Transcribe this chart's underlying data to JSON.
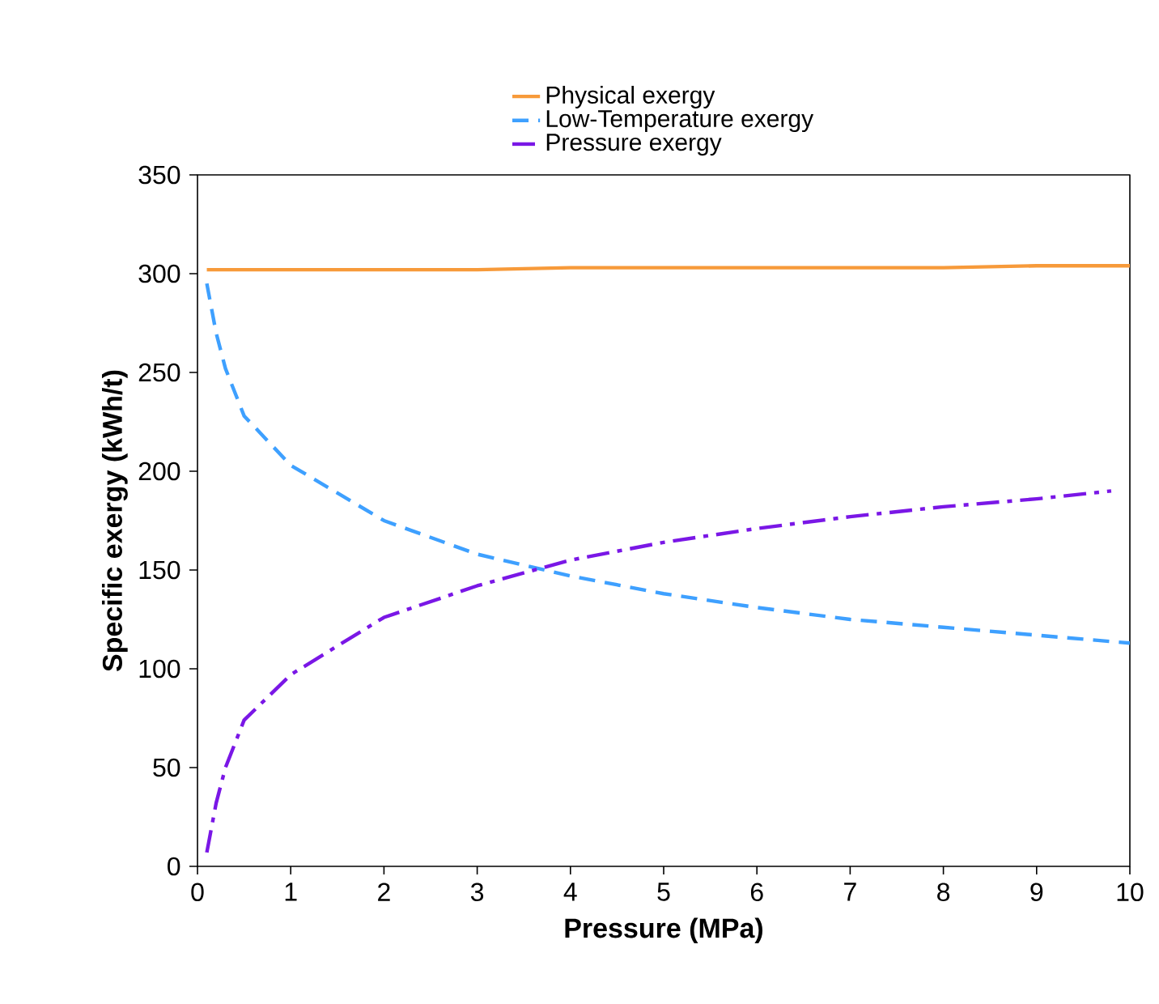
{
  "chart_data": {
    "type": "line",
    "xlabel": "Pressure (MPa)",
    "ylabel": "Specific exergy (kWh/t)",
    "xlim": [
      0,
      10
    ],
    "ylim": [
      0,
      350
    ],
    "xticks": [
      0,
      1,
      2,
      3,
      4,
      5,
      6,
      7,
      8,
      9,
      10
    ],
    "yticks": [
      0,
      50,
      100,
      150,
      200,
      250,
      300,
      350
    ],
    "grid": false,
    "legend": "top",
    "marker": "none",
    "series": [
      {
        "name": "Physical exergy",
        "color": "#f79a3a",
        "line_style": "solid",
        "x": [
          0.1,
          1,
          2,
          3,
          4,
          5,
          6,
          7,
          8,
          9,
          10
        ],
        "values": [
          302,
          302,
          302,
          302,
          303,
          303,
          303,
          303,
          303,
          304,
          304
        ]
      },
      {
        "name": "Low-Temperature exergy",
        "color": "#3ea0ff",
        "line_style": "dashed",
        "x": [
          0.1,
          0.2,
          0.3,
          0.5,
          1,
          2,
          3,
          4,
          5,
          6,
          7,
          8,
          9,
          10
        ],
        "values": [
          295,
          270,
          252,
          228,
          203,
          175,
          158,
          147,
          138,
          131,
          125,
          121,
          117,
          113
        ]
      },
      {
        "name": "Pressure exergy",
        "color": "#7a17e6",
        "line_style": "dashdot",
        "x": [
          0.1,
          0.2,
          0.3,
          0.5,
          1,
          2,
          3,
          4,
          5,
          6,
          7,
          8,
          9,
          9.8
        ],
        "values": [
          7,
          32,
          50,
          74,
          97,
          126,
          142,
          155,
          164,
          171,
          177,
          182,
          186,
          190
        ]
      }
    ]
  }
}
